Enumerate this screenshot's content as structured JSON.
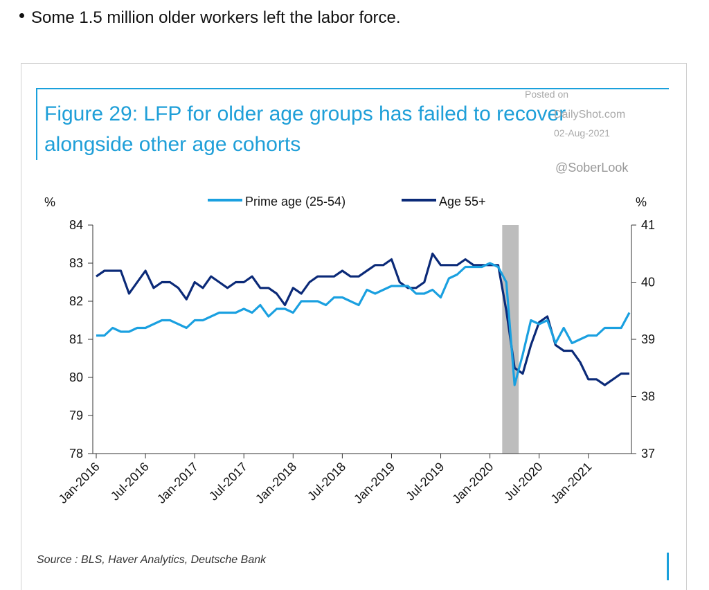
{
  "bullet_text": "Some 1.5 million older workers left the labor force.",
  "watermark": {
    "posted": "Posted on",
    "site": "DailyShot.com",
    "date": "02-Aug-2021",
    "handle": "@SoberLook"
  },
  "source": "Source : BLS, Haver Analytics, Deutsche Bank",
  "colors": {
    "prime": "#1aa0e0",
    "age55": "#0b2a78",
    "recession": "#bdbdbd",
    "title": "#1f9fd8"
  },
  "chart_data": {
    "type": "line",
    "title": "Figure 29: LFP for older age groups has failed to recover alongside other age cohorts",
    "ylabel_left": "%",
    "ylabel_right": "%",
    "ylim_left": [
      78,
      84
    ],
    "ylim_right": [
      37,
      41
    ],
    "yticks_left": [
      78,
      79,
      80,
      81,
      82,
      83,
      84
    ],
    "yticks_right": [
      37,
      38,
      39,
      40,
      41
    ],
    "x_start": "2016-01",
    "xtick_labels": [
      "Jan-2016",
      "Jul-2016",
      "Jan-2017",
      "Jul-2017",
      "Jan-2018",
      "Jul-2018",
      "Jan-2019",
      "Jul-2019",
      "Jan-2020",
      "Jul-2020",
      "Jan-2021"
    ],
    "legend_position": "top-center",
    "recession": [
      "2020-03",
      "2020-04"
    ],
    "series": [
      {
        "name": "Prime age (25-54)",
        "axis": "left",
        "values": [
          81.1,
          81.1,
          81.3,
          81.2,
          81.2,
          81.3,
          81.3,
          81.4,
          81.5,
          81.5,
          81.4,
          81.3,
          81.5,
          81.5,
          81.6,
          81.7,
          81.7,
          81.7,
          81.8,
          81.7,
          81.9,
          81.6,
          81.8,
          81.8,
          81.7,
          82.0,
          82.0,
          82.0,
          81.9,
          82.1,
          82.1,
          82.0,
          81.9,
          82.3,
          82.2,
          82.3,
          82.4,
          82.4,
          82.4,
          82.2,
          82.2,
          82.3,
          82.1,
          82.6,
          82.7,
          82.9,
          82.9,
          82.9,
          83.0,
          82.9,
          82.5,
          79.8,
          80.6,
          81.5,
          81.4,
          81.5,
          80.9,
          81.3,
          80.9,
          81.0,
          81.1,
          81.1,
          81.3,
          81.3,
          81.3,
          81.7
        ]
      },
      {
        "name": "Age 55+",
        "axis": "right",
        "values": [
          40.1,
          40.2,
          40.2,
          40.2,
          39.8,
          40.0,
          40.2,
          39.9,
          40.0,
          40.0,
          39.9,
          39.7,
          40.0,
          39.9,
          40.1,
          40.0,
          39.9,
          40.0,
          40.0,
          40.1,
          39.9,
          39.9,
          39.8,
          39.6,
          39.9,
          39.8,
          40.0,
          40.1,
          40.1,
          40.1,
          40.2,
          40.1,
          40.1,
          40.2,
          40.3,
          40.3,
          40.4,
          40.0,
          39.9,
          39.9,
          40.0,
          40.5,
          40.3,
          40.3,
          40.3,
          40.4,
          40.3,
          40.3,
          40.3,
          40.3,
          39.5,
          38.5,
          38.4,
          38.9,
          39.3,
          39.4,
          38.9,
          38.8,
          38.8,
          38.6,
          38.3,
          38.3,
          38.2,
          38.3,
          38.4,
          38.4
        ]
      }
    ]
  }
}
